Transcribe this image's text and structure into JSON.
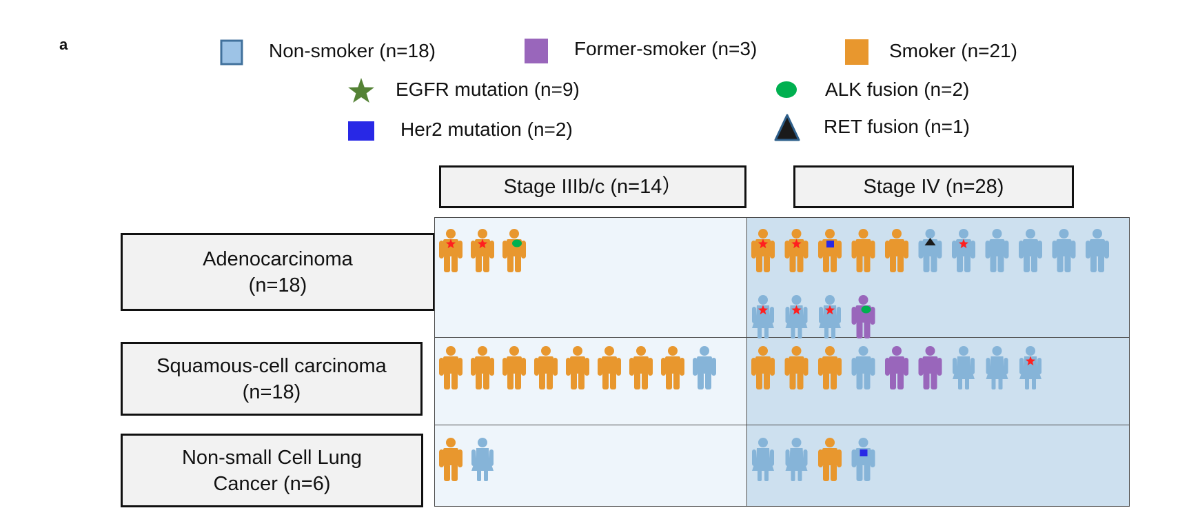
{
  "panel_label": "a",
  "legend": {
    "smoking": [
      {
        "label": "Non-smoker (n=18)",
        "color": "#9dc3e6",
        "icon": "square-swatch-icon"
      },
      {
        "label": "Former-smoker (n=3)",
        "color": "#9966bb",
        "icon": "square-swatch-icon"
      },
      {
        "label": "Smoker (n=21)",
        "color": "#e8972e",
        "icon": "square-swatch-icon"
      }
    ],
    "mutations": [
      {
        "label": "EGFR mutation (n=9)",
        "icon": "star-icon",
        "color": "#548235"
      },
      {
        "label": "ALK fusion (n=2)",
        "icon": "ellipse-icon",
        "color": "#00b050"
      },
      {
        "label": "Her2 mutation (n=2)",
        "icon": "square-icon",
        "color": "#2828e6"
      },
      {
        "label": "RET fusion (n=1)",
        "icon": "triangle-icon",
        "color": "#1a1a1a"
      }
    ]
  },
  "stages": [
    {
      "label": "Stage IIIb/c (n=14）"
    },
    {
      "label": "Stage IV (n=28)"
    }
  ],
  "histology": [
    {
      "line1": "Adenocarcinoma",
      "line2": "(n=18)"
    },
    {
      "line1": "Squamous-cell carcinoma",
      "line2": "(n=18)"
    },
    {
      "line1": "Non-small Cell Lung",
      "line2": "Cancer (n=6)"
    }
  ],
  "colors": {
    "smoker": "#e8972e",
    "non_smoker": "#86b4d8",
    "former_smoker": "#9966bb",
    "egfr_marker": "#ff1f1f",
    "alk_marker": "#00b050",
    "her2_marker": "#2828e6",
    "ret_marker": "#1a1a1a"
  },
  "grid": [
    [
      [
        {
          "status": "smoker",
          "sex": "male",
          "marker": "egfr"
        },
        {
          "status": "smoker",
          "sex": "male",
          "marker": "egfr"
        },
        {
          "status": "smoker",
          "sex": "male",
          "marker": "alk"
        }
      ],
      [
        {
          "status": "smoker",
          "sex": "male",
          "marker": "egfr"
        },
        {
          "status": "smoker",
          "sex": "male",
          "marker": "egfr"
        },
        {
          "status": "smoker",
          "sex": "male",
          "marker": "her2"
        },
        {
          "status": "smoker",
          "sex": "male",
          "marker": null
        },
        {
          "status": "smoker",
          "sex": "male",
          "marker": null
        },
        {
          "status": "non_smoker",
          "sex": "male",
          "marker": "ret"
        },
        {
          "status": "non_smoker",
          "sex": "male",
          "marker": "egfr"
        },
        {
          "status": "non_smoker",
          "sex": "male",
          "marker": null
        },
        {
          "status": "non_smoker",
          "sex": "male",
          "marker": null
        },
        {
          "status": "non_smoker",
          "sex": "male",
          "marker": null
        },
        {
          "status": "non_smoker",
          "sex": "male",
          "marker": null
        },
        {
          "status": "non_smoker",
          "sex": "female",
          "marker": "egfr"
        },
        {
          "status": "non_smoker",
          "sex": "female",
          "marker": "egfr"
        },
        {
          "status": "non_smoker",
          "sex": "female",
          "marker": "egfr"
        },
        {
          "status": "former_smoker",
          "sex": "male",
          "marker": "alk"
        }
      ]
    ],
    [
      [
        {
          "status": "smoker",
          "sex": "male",
          "marker": null
        },
        {
          "status": "smoker",
          "sex": "male",
          "marker": null
        },
        {
          "status": "smoker",
          "sex": "male",
          "marker": null
        },
        {
          "status": "smoker",
          "sex": "male",
          "marker": null
        },
        {
          "status": "smoker",
          "sex": "male",
          "marker": null
        },
        {
          "status": "smoker",
          "sex": "male",
          "marker": null
        },
        {
          "status": "smoker",
          "sex": "male",
          "marker": null
        },
        {
          "status": "smoker",
          "sex": "male",
          "marker": null
        },
        {
          "status": "non_smoker",
          "sex": "male",
          "marker": null
        }
      ],
      [
        {
          "status": "smoker",
          "sex": "male",
          "marker": null
        },
        {
          "status": "smoker",
          "sex": "male",
          "marker": null
        },
        {
          "status": "smoker",
          "sex": "male",
          "marker": null
        },
        {
          "status": "non_smoker",
          "sex": "male",
          "marker": null
        },
        {
          "status": "former_smoker",
          "sex": "male",
          "marker": null
        },
        {
          "status": "former_smoker",
          "sex": "male",
          "marker": null
        },
        {
          "status": "non_smoker",
          "sex": "female",
          "marker": null
        },
        {
          "status": "non_smoker",
          "sex": "female",
          "marker": null
        },
        {
          "status": "non_smoker",
          "sex": "female",
          "marker": "egfr"
        }
      ]
    ],
    [
      [
        {
          "status": "smoker",
          "sex": "male",
          "marker": null
        },
        {
          "status": "non_smoker",
          "sex": "female",
          "marker": null
        }
      ],
      [
        {
          "status": "non_smoker",
          "sex": "female",
          "marker": null
        },
        {
          "status": "non_smoker",
          "sex": "female",
          "marker": null
        },
        {
          "status": "smoker",
          "sex": "male",
          "marker": null
        },
        {
          "status": "non_smoker",
          "sex": "male",
          "marker": "her2"
        }
      ]
    ]
  ]
}
